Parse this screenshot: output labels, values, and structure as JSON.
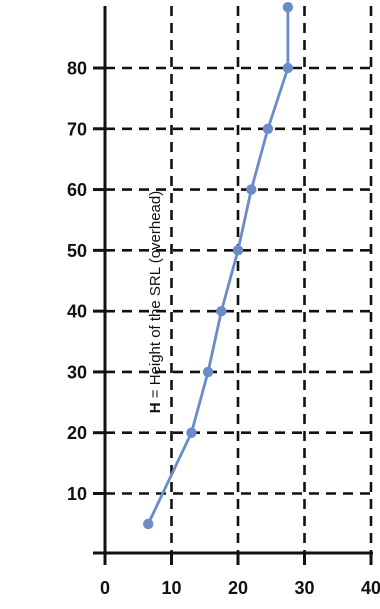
{
  "chart_data": {
    "type": "line",
    "title": "",
    "xlabel": "",
    "ylabel_prefix": "H",
    "ylabel_rest": " = Height of the SRL (overhead)",
    "xlim": [
      0,
      40
    ],
    "ylim": [
      0,
      90
    ],
    "xticks": [
      0,
      10,
      20,
      30,
      40
    ],
    "yticks": [
      10,
      20,
      30,
      40,
      50,
      60,
      70,
      80
    ],
    "grid": true,
    "series": [
      {
        "color": "#6a8cc7",
        "points": [
          {
            "x": 6.5,
            "y": 5
          },
          {
            "x": 13,
            "y": 20
          },
          {
            "x": 15.5,
            "y": 30
          },
          {
            "x": 17.5,
            "y": 40
          },
          {
            "x": 20,
            "y": 50
          },
          {
            "x": 22,
            "y": 60
          },
          {
            "x": 24.5,
            "y": 70
          },
          {
            "x": 27.5,
            "y": 80
          },
          {
            "x": 27.5,
            "y": 90
          }
        ]
      }
    ]
  }
}
